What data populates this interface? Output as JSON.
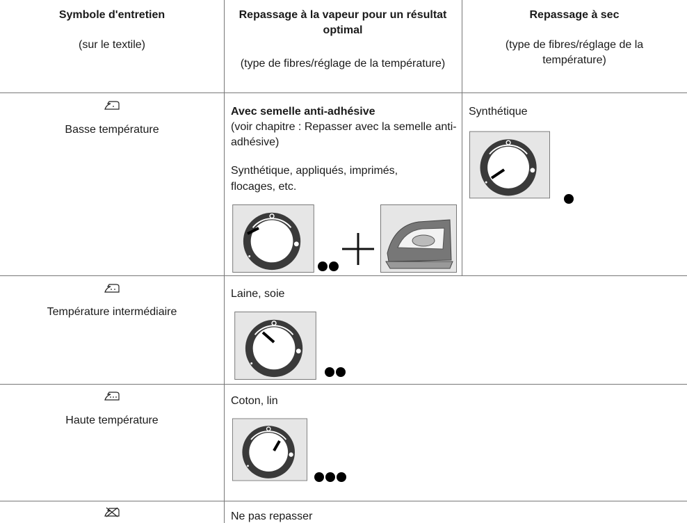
{
  "table": {
    "header": [
      {
        "title": "Symbole d'entretien",
        "note": "(sur le textile)"
      },
      {
        "title": "Repassage à la vapeur pour un résultat optimal",
        "note": "(type de fibres/réglage de la température)"
      },
      {
        "title": "Repassage à sec",
        "note": "(type de fibres/réglage de la température)"
      }
    ],
    "rows": [
      {
        "symbol": "Basse température",
        "steam": {
          "heading": "Avec semelle anti-adhésive",
          "note": "(voir chapitre : Repasser avec la semelle anti-adhésive)",
          "text": "Synthétique, appliqués, imprimés, flocages, etc."
        },
        "dry": "Synthétique"
      },
      {
        "symbol": "Température intermédiaire",
        "steam": {
          "text": "Laine, soie"
        }
      },
      {
        "symbol": "Haute température",
        "steam": {
          "text": "Coton, lin"
        }
      },
      {
        "steam": {
          "text": "Ne pas repasser"
        }
      }
    ]
  }
}
